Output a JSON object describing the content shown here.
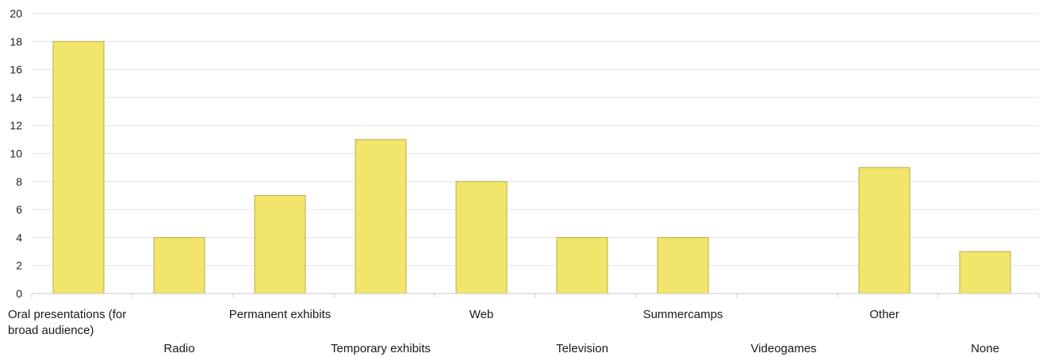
{
  "chart_data": {
    "type": "bar",
    "title": "",
    "xlabel": "",
    "ylabel": "",
    "ylim": [
      0,
      20
    ],
    "y_ticks": [
      0,
      2,
      4,
      6,
      8,
      10,
      12,
      14,
      16,
      18,
      20
    ],
    "grid": "horizontal",
    "legend": "none",
    "categories": [
      "Oral presentations (for broad audience)",
      "Radio",
      "Permanent exhibits",
      "Temporary exhibits",
      "Web",
      "Television",
      "Summercamps",
      "Videogames",
      "Other",
      "None"
    ],
    "category_label_lines": [
      [
        "Oral presentations (for",
        "broad audience)"
      ],
      [
        "Radio"
      ],
      [
        "Permanent exhibits"
      ],
      [
        "Temporary exhibits"
      ],
      [
        "Web"
      ],
      [
        "Television"
      ],
      [
        "Summercamps"
      ],
      [
        "Videogames"
      ],
      [
        "Other"
      ],
      [
        "None"
      ]
    ],
    "values": [
      18,
      4,
      7,
      11,
      8,
      4,
      4,
      0,
      9,
      3
    ],
    "colors": {
      "bar_fill": "#f2e56b",
      "bar_stroke": "#b8ad48",
      "grid": "#e3e3e3",
      "axis": "#c8c8c8"
    }
  }
}
